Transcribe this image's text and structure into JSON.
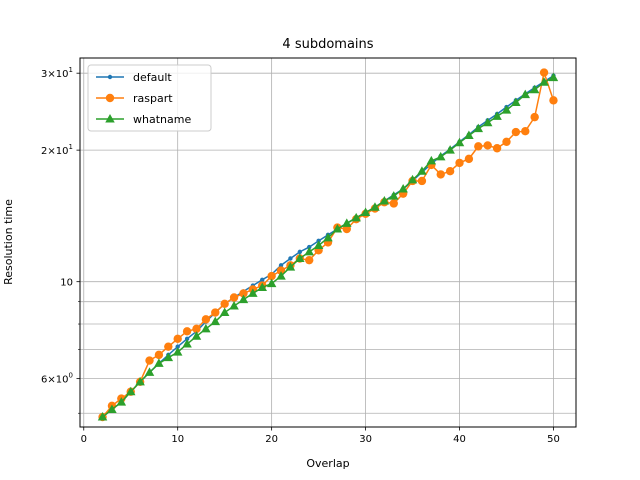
{
  "chart_data": {
    "type": "line",
    "title": "4 subdomains",
    "xlabel": "Overlap",
    "ylabel": "Resolution time",
    "xlim": [
      -0.4,
      52.4
    ],
    "ylim": [
      4.65,
      32.5
    ],
    "yscale": "log",
    "grid": true,
    "legend_position": "top-left",
    "x_ticks": [
      0,
      10,
      20,
      30,
      40,
      50
    ],
    "y_ticks_labeled": [
      {
        "value": 6,
        "mantissa": "6",
        "exponent": "0",
        "kind": "pow"
      },
      {
        "value": 10,
        "mantissa": "10",
        "exponent": "1",
        "kind": "plain"
      },
      {
        "value": 20,
        "mantissa": "2",
        "exponent": "1",
        "kind": "pow"
      },
      {
        "value": 30,
        "mantissa": "3",
        "exponent": "1",
        "kind": "pow"
      }
    ],
    "y_minor_gridlines": [
      5,
      7,
      8,
      9
    ],
    "x": [
      2,
      3,
      4,
      5,
      6,
      7,
      8,
      9,
      10,
      11,
      12,
      13,
      14,
      15,
      16,
      17,
      18,
      19,
      20,
      21,
      22,
      23,
      24,
      25,
      26,
      27,
      28,
      29,
      30,
      31,
      32,
      33,
      34,
      35,
      36,
      37,
      38,
      39,
      40,
      41,
      42,
      43,
      44,
      45,
      46,
      47,
      48,
      49,
      50
    ],
    "series": [
      {
        "name": "default",
        "color": "#1f77b4",
        "marker": "dot",
        "values": [
          4.9,
          5.1,
          5.3,
          5.6,
          5.9,
          6.2,
          6.5,
          6.8,
          7.1,
          7.4,
          7.7,
          8.1,
          8.5,
          8.9,
          9.2,
          9.5,
          9.8,
          10.1,
          10.4,
          10.9,
          11.3,
          11.7,
          12.0,
          12.4,
          12.8,
          13.2,
          13.6,
          14.0,
          14.4,
          14.8,
          15.3,
          15.8,
          16.3,
          17.0,
          17.8,
          18.6,
          19.4,
          20.1,
          20.9,
          21.7,
          22.6,
          23.4,
          24.2,
          25.1,
          26.0,
          26.9,
          27.8,
          28.7,
          29.6
        ]
      },
      {
        "name": "raspart",
        "color": "#ff7f0e",
        "marker": "circle",
        "values": [
          4.9,
          5.2,
          5.4,
          5.6,
          5.9,
          6.6,
          6.8,
          7.1,
          7.4,
          7.7,
          7.8,
          8.2,
          8.5,
          8.9,
          9.2,
          9.4,
          9.6,
          9.8,
          10.3,
          10.6,
          10.9,
          11.3,
          11.2,
          11.8,
          12.3,
          13.3,
          13.2,
          13.9,
          14.3,
          14.7,
          15.2,
          15.1,
          15.9,
          17.0,
          17.0,
          18.5,
          17.6,
          17.9,
          18.7,
          19.1,
          20.4,
          20.5,
          20.2,
          20.9,
          22.0,
          22.1,
          23.8,
          30.1,
          26.0
        ]
      },
      {
        "name": "whatname",
        "color": "#2ca02c",
        "marker": "triangle",
        "values": [
          4.9,
          5.1,
          5.3,
          5.6,
          5.9,
          6.2,
          6.5,
          6.7,
          6.9,
          7.2,
          7.5,
          7.8,
          8.1,
          8.5,
          8.8,
          9.1,
          9.4,
          9.7,
          9.9,
          10.3,
          10.8,
          11.3,
          11.7,
          12.1,
          12.6,
          13.2,
          13.6,
          14.0,
          14.4,
          14.8,
          15.3,
          15.7,
          16.3,
          17.1,
          17.9,
          18.9,
          19.3,
          20.0,
          20.8,
          21.6,
          22.4,
          23.1,
          23.9,
          24.7,
          25.7,
          26.8,
          27.5,
          28.6,
          29.3
        ]
      }
    ]
  }
}
